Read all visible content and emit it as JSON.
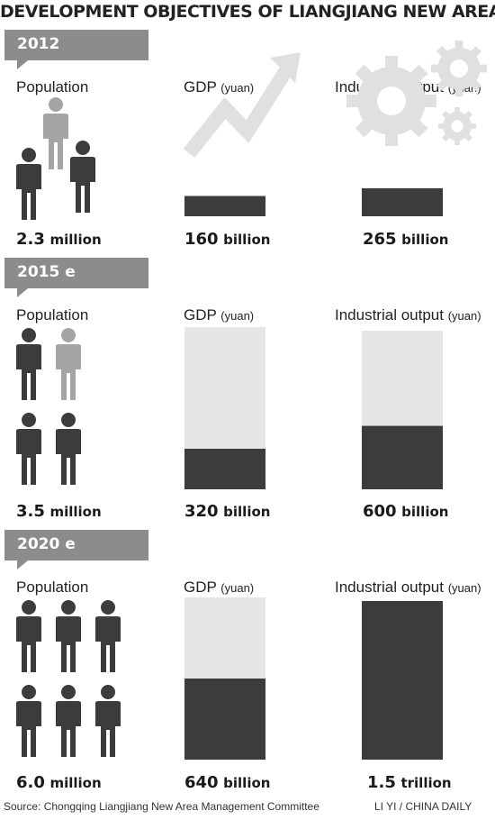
{
  "title": "DEVELOPMENT OBJECTIVES OF LIANGJIANG NEW AREA",
  "source": "Source: Chongqing Liangjiang New Area Management Committee",
  "credit": "LI YI / CHINA DAILY",
  "labels": {
    "population": "Population",
    "gdp": "GDP",
    "industrial": "Industrial output",
    "unit": "(yuan)"
  },
  "colors": {
    "dark": "#3c3c3c",
    "mid": "#8c8c8c",
    "light": "#e6e6e6",
    "figure_gray": "#a5a5a5"
  },
  "icons": {
    "gdp_2012": "rising-arrow-icon",
    "industrial_2012": "gears-icon",
    "population": "person-icon"
  },
  "chart_data": {
    "type": "bar",
    "title": "DEVELOPMENT OBJECTIVES OF LIANGJIANG NEW AREA",
    "note_estimated": "e",
    "categories": [
      "2012",
      "2015 e",
      "2020 e"
    ],
    "series": [
      {
        "name": "Population",
        "unit": "million",
        "values": [
          2.3,
          3.5,
          6.0
        ],
        "value_labels": [
          [
            "2.3",
            "million"
          ],
          [
            "3.5",
            "million"
          ],
          [
            "6.0",
            "million"
          ]
        ]
      },
      {
        "name": "GDP (yuan)",
        "unit": "billion yuan",
        "values": [
          160,
          320,
          640
        ],
        "value_labels": [
          [
            "160",
            "billion"
          ],
          [
            "320",
            "billion"
          ],
          [
            "640",
            "billion"
          ]
        ]
      },
      {
        "name": "Industrial output (yuan)",
        "unit": "billion yuan",
        "values": [
          265,
          600,
          1500
        ],
        "value_labels": [
          [
            "265",
            "billion"
          ],
          [
            "600",
            "billion"
          ],
          [
            "1.5",
            "trillion"
          ]
        ]
      }
    ],
    "gdp_scale_max": 1280,
    "industrial_scale_max": 1500
  }
}
